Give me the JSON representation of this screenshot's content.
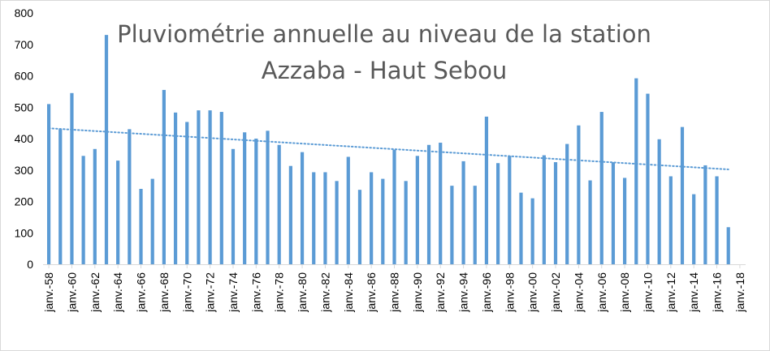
{
  "chart_data": {
    "type": "bar",
    "title_lines": [
      "Pluviométrie annuelle au niveau de la station",
      "Azzaba - Haut Sebou"
    ],
    "xlabel": "",
    "ylabel": "",
    "ylim": [
      0,
      800
    ],
    "y_ticks": [
      0,
      100,
      200,
      300,
      400,
      500,
      600,
      700,
      800
    ],
    "x_tick_labels": [
      "janv.-58",
      "janv.-60",
      "janv.-62",
      "janv.-64",
      "janv.-66",
      "janv.-68",
      "janv.-70",
      "janv.-72",
      "janv.-74",
      "janv.-76",
      "janv.-78",
      "janv.-80",
      "janv.-82",
      "janv.-84",
      "janv.-86",
      "janv.-88",
      "janv.-90",
      "janv.-92",
      "janv.-94",
      "janv.-96",
      "janv.-98",
      "janv.-00",
      "janv.-02",
      "janv.-04",
      "janv.-06",
      "janv.-08",
      "janv.-10",
      "janv.-12",
      "janv.-14",
      "janv.-16",
      "janv.-18"
    ],
    "x_years": [
      1958,
      1959,
      1960,
      1961,
      1962,
      1963,
      1964,
      1965,
      1966,
      1967,
      1968,
      1969,
      1970,
      1971,
      1972,
      1973,
      1974,
      1975,
      1976,
      1977,
      1978,
      1979,
      1980,
      1981,
      1982,
      1983,
      1984,
      1985,
      1986,
      1987,
      1988,
      1989,
      1990,
      1991,
      1992,
      1993,
      1994,
      1995,
      1996,
      1997,
      1998,
      1999,
      2000,
      2001,
      2002,
      2003,
      2004,
      2005,
      2006,
      2007,
      2008,
      2009,
      2010,
      2011,
      2012,
      2013,
      2014,
      2015,
      2016,
      2017
    ],
    "values": [
      510,
      430,
      545,
      345,
      367,
      730,
      330,
      430,
      240,
      272,
      555,
      483,
      453,
      490,
      490,
      485,
      367,
      420,
      400,
      425,
      380,
      313,
      357,
      293,
      293,
      265,
      342,
      237,
      293,
      272,
      365,
      265,
      345,
      380,
      387,
      250,
      328,
      250,
      470,
      322,
      345,
      228,
      210,
      347,
      325,
      383,
      442,
      267,
      485,
      325,
      275,
      592,
      543,
      398,
      280,
      437,
      223,
      315,
      280,
      118
    ],
    "trendline": {
      "style": "dotted",
      "from": [
        1958,
        433
      ],
      "to": [
        2017,
        302
      ]
    },
    "series_color": "#5b9bd5",
    "grid": false,
    "legend": "none"
  }
}
